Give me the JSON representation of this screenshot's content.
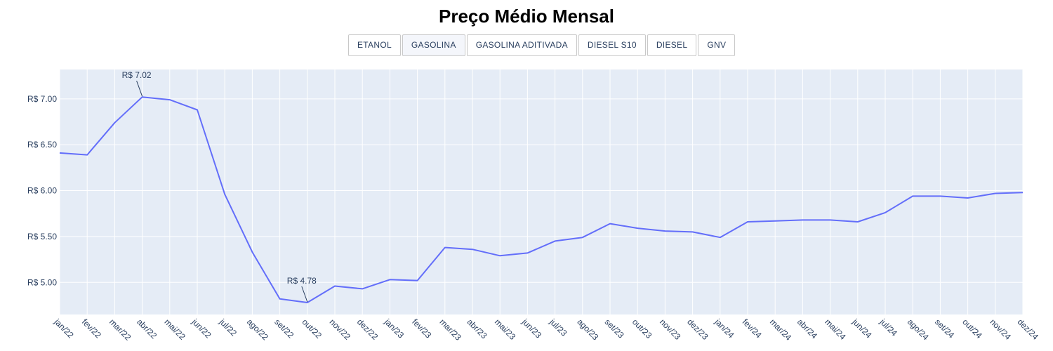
{
  "title": "Preço Médio Mensal",
  "buttons": [
    {
      "label": "ETANOL",
      "active": false
    },
    {
      "label": "GASOLINA",
      "active": true
    },
    {
      "label": "GASOLINA ADITIVADA",
      "active": false
    },
    {
      "label": "DIESEL S10",
      "active": false
    },
    {
      "label": "DIESEL",
      "active": false
    },
    {
      "label": "GNV",
      "active": false
    }
  ],
  "colors": {
    "line": "#636efa",
    "plot_bg": "#e5ecf6",
    "grid": "#ffffff",
    "text": "#2a3f5f"
  },
  "chart_data": {
    "type": "line",
    "title": "Preço Médio Mensal",
    "x": [
      "jan/22",
      "fev/22",
      "mar/22",
      "abr/22",
      "mai/22",
      "jun/22",
      "jul/22",
      "ago/22",
      "set/22",
      "out/22",
      "nov/22",
      "dez/22",
      "jan/23",
      "fev/23",
      "mar/23",
      "abr/23",
      "mai/23",
      "jun/23",
      "jul/23",
      "ago/23",
      "set/23",
      "out/23",
      "nov/23",
      "dez/23",
      "jan/24",
      "fev/24",
      "mar/24",
      "abr/24",
      "mai/24",
      "jun/24",
      "jul/24",
      "ago/24",
      "set/24",
      "out/24",
      "nov/24",
      "dez/24"
    ],
    "series": [
      {
        "values": [
          6.41,
          6.39,
          6.74,
          7.02,
          6.99,
          6.88,
          5.96,
          5.33,
          4.82,
          4.78,
          4.96,
          4.93,
          5.03,
          5.02,
          5.38,
          5.36,
          5.29,
          5.32,
          5.45,
          5.49,
          5.64,
          5.59,
          5.56,
          5.55,
          5.49,
          5.66,
          5.67,
          5.68,
          5.68,
          5.66,
          5.76,
          5.94,
          5.94,
          5.92,
          5.97,
          5.98
        ]
      }
    ],
    "y_tick_values": [
      5.0,
      5.5,
      6.0,
      6.5,
      7.0
    ],
    "y_tick_labels": [
      "R$ 5.00",
      "R$ 5.50",
      "R$ 6.00",
      "R$ 6.50",
      "R$ 7.00"
    ],
    "ylim": [
      4.65,
      7.32
    ],
    "annotations": [
      {
        "index": 3,
        "value": 7.02,
        "text": "R$ 7.02"
      },
      {
        "index": 9,
        "value": 4.78,
        "text": "R$ 4.78"
      }
    ],
    "grid": true,
    "legend": "none"
  }
}
